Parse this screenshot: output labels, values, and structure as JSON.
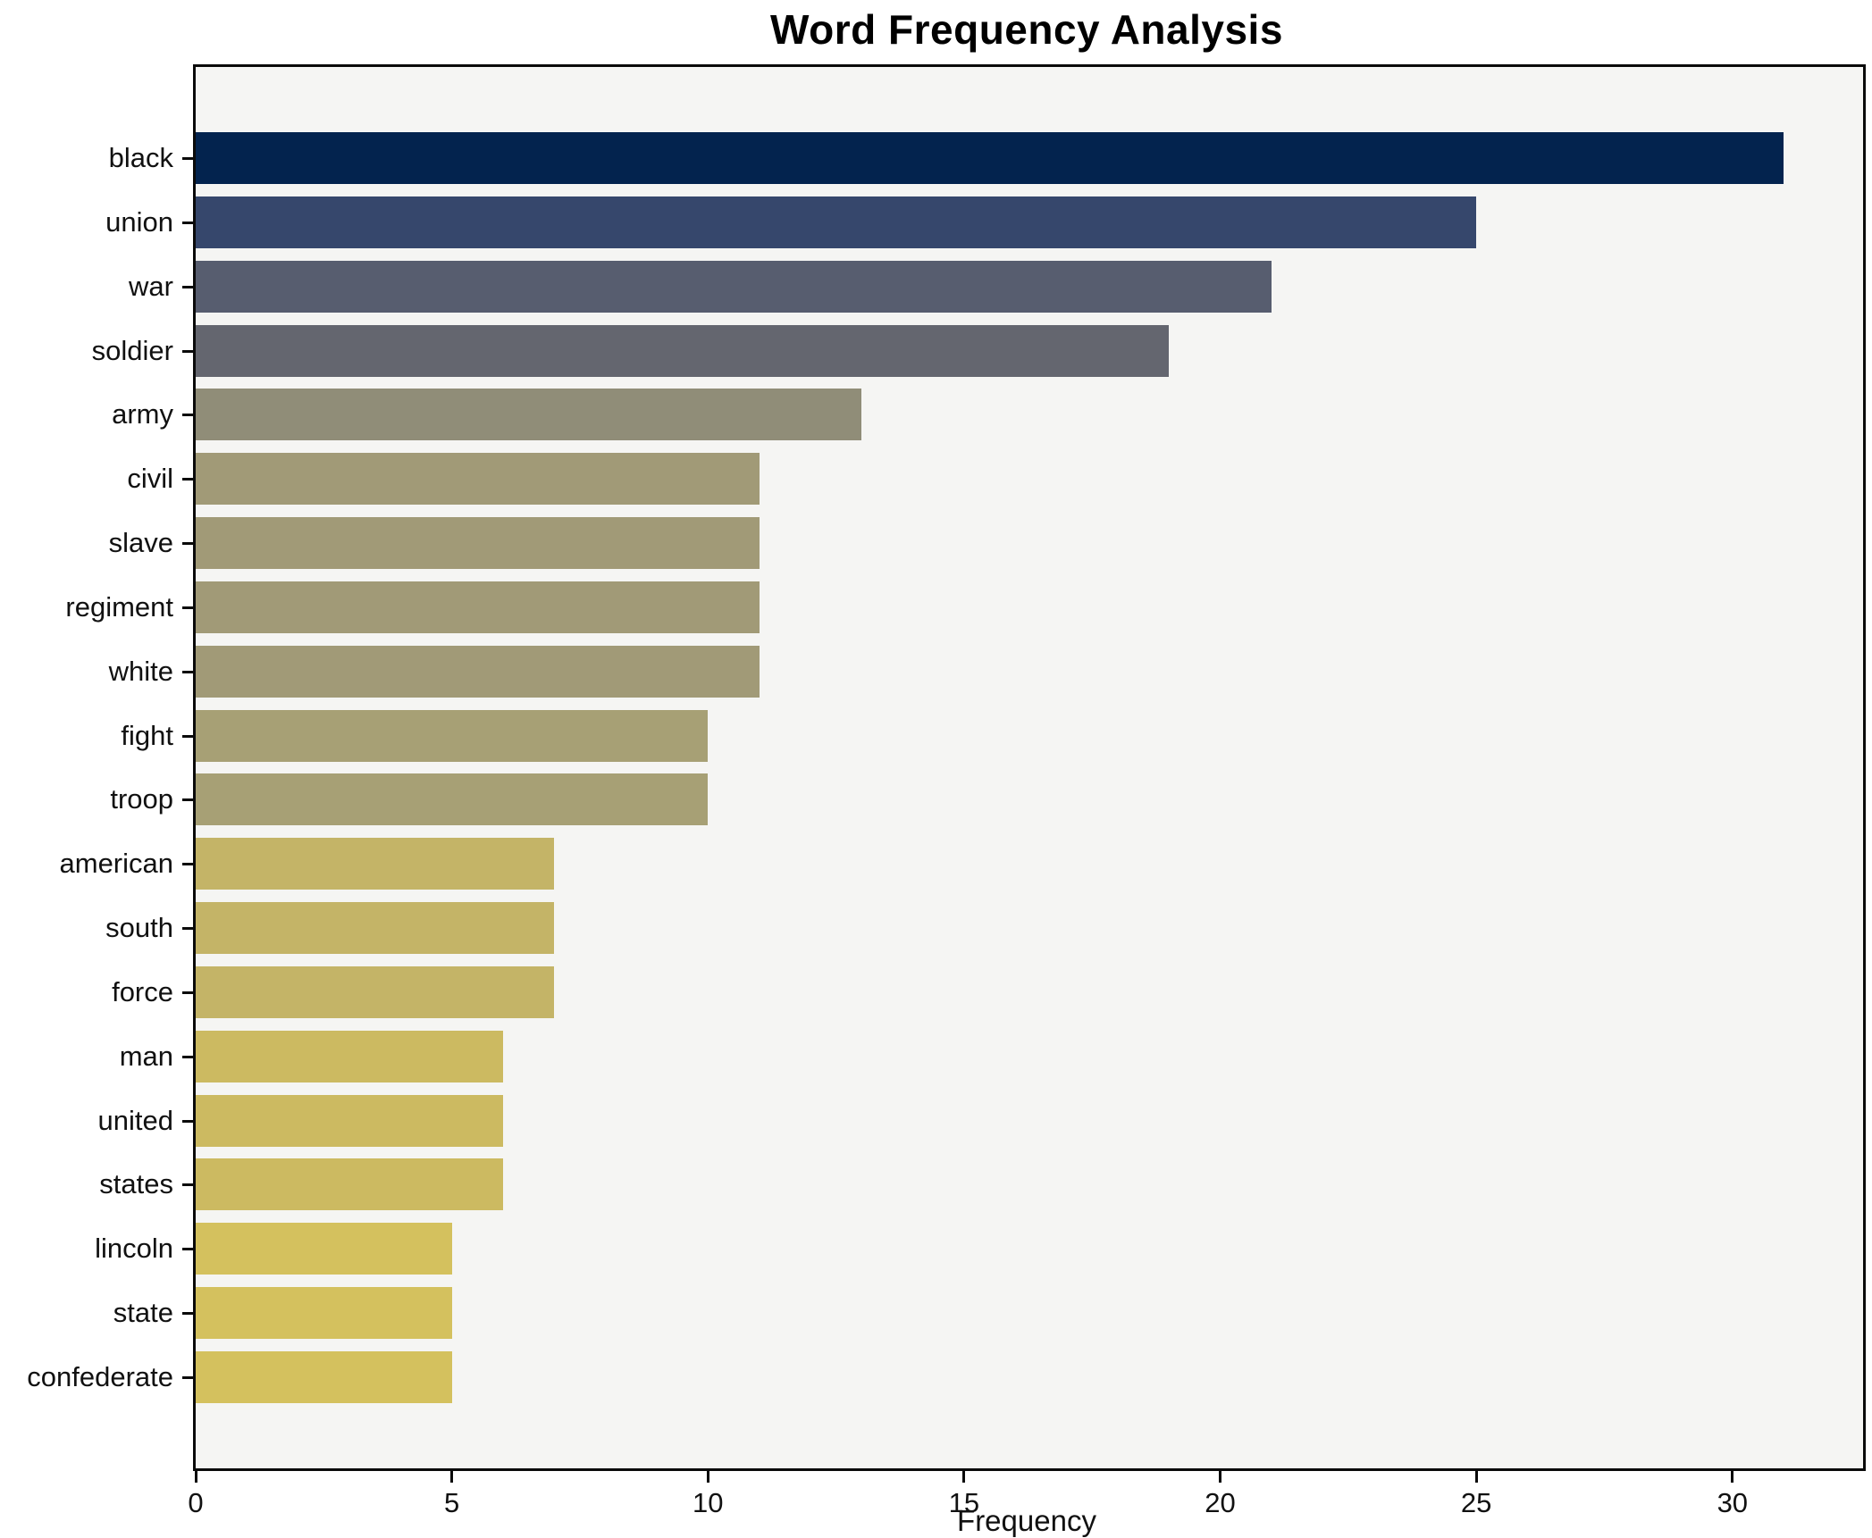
{
  "chart_data": {
    "type": "bar",
    "orientation": "horizontal",
    "title": "Word Frequency Analysis",
    "xlabel": "Frequency",
    "ylabel": "",
    "categories": [
      "black",
      "union",
      "war",
      "soldier",
      "army",
      "civil",
      "slave",
      "regiment",
      "white",
      "fight",
      "troop",
      "american",
      "south",
      "force",
      "man",
      "united",
      "states",
      "lincoln",
      "state",
      "confederate"
    ],
    "values": [
      31,
      25,
      21,
      19,
      13,
      11,
      11,
      11,
      11,
      10,
      10,
      7,
      7,
      7,
      6,
      6,
      6,
      5,
      5,
      5
    ],
    "bar_colors": [
      "#03234e",
      "#36476c",
      "#575d6f",
      "#64666f",
      "#908d78",
      "#a19a77",
      "#a19a77",
      "#a19a77",
      "#a19a77",
      "#a7a075",
      "#a7a075",
      "#c4b467",
      "#c4b467",
      "#c4b467",
      "#ccba61",
      "#ccba61",
      "#ccba61",
      "#d4c15e",
      "#d4c15e",
      "#d4c15e"
    ],
    "xticks": [
      0,
      5,
      10,
      15,
      20,
      25,
      30
    ],
    "xlim": [
      0,
      32.55
    ],
    "grid": false,
    "legend": "none",
    "colormap": "cividis-reversed-by-value"
  },
  "colors": {
    "figure_background": "#ffffff",
    "plot_background": "#f5f5f3",
    "axis": "#0a0a0a",
    "text": "#111111"
  }
}
